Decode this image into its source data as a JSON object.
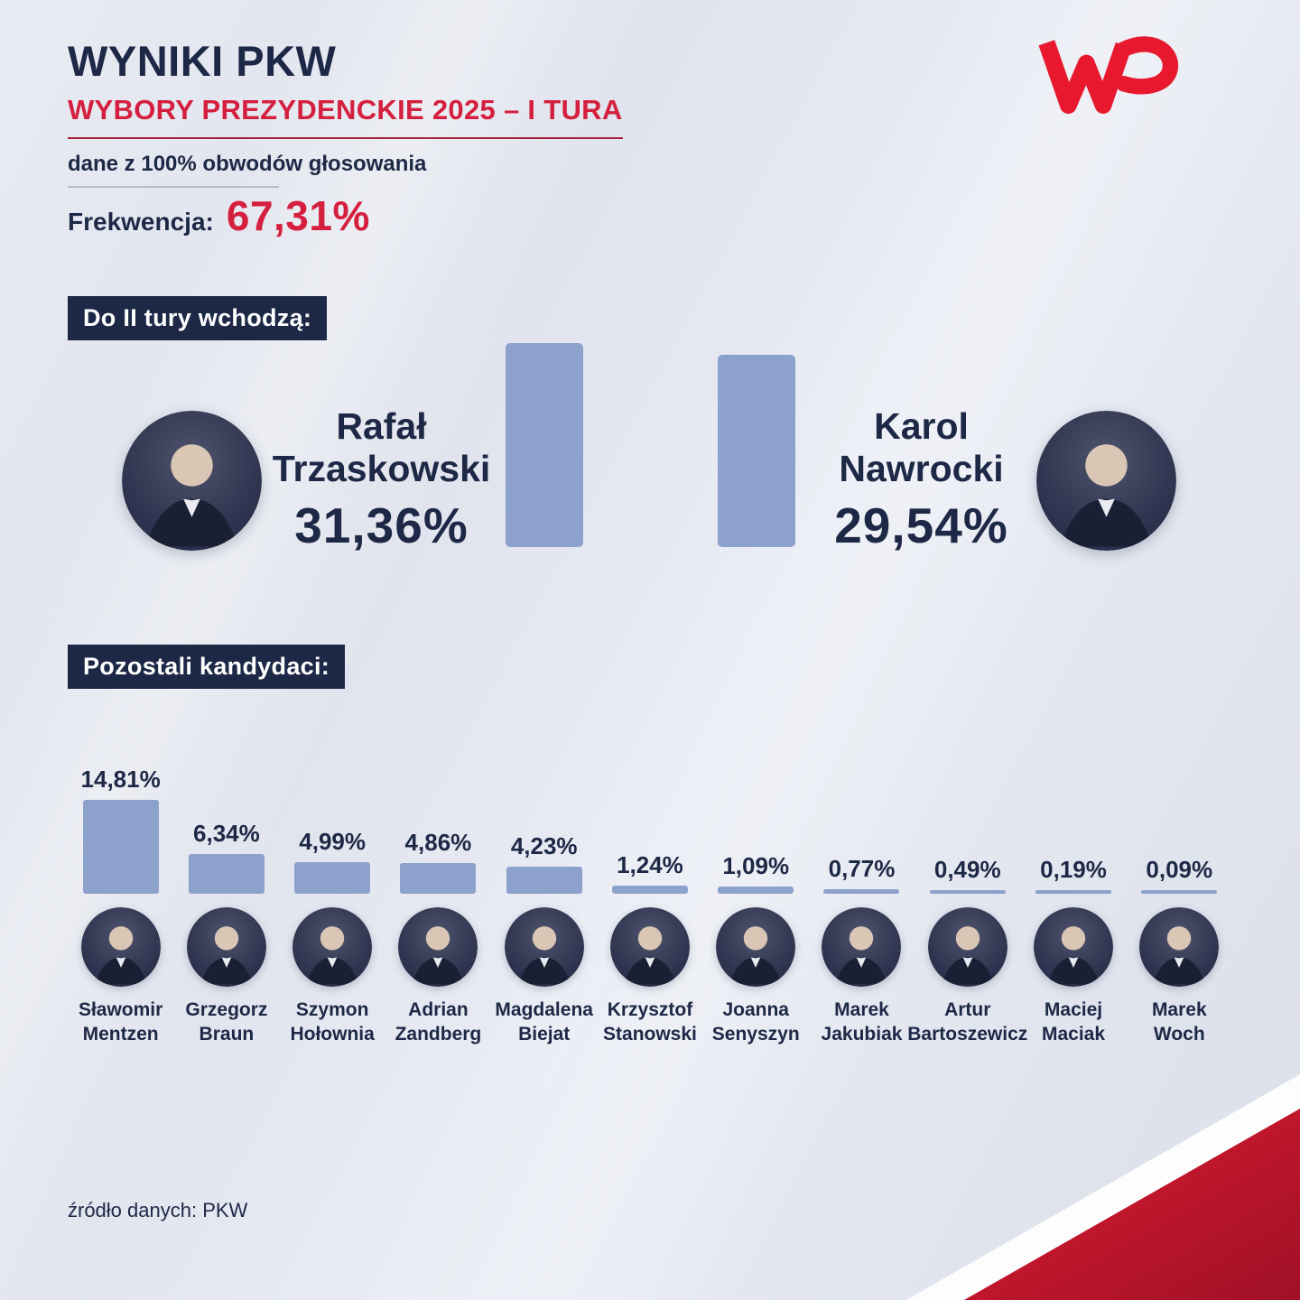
{
  "header": {
    "title": "WYNIKI PKW",
    "subtitle": "WYBORY PREZYDENCKIE 2025 – I TURA",
    "coverage": "dane z 100% obwodów głosowania",
    "turnout_label": "Frekwencja:",
    "turnout_value": "67,31%",
    "logo_name": "WP"
  },
  "finalists": {
    "section_label": "Do II tury wchodzą:",
    "candidates": [
      {
        "first": "Rafał",
        "last": "Trzaskowski",
        "percent": "31,36%",
        "value": 31.36
      },
      {
        "first": "Karol",
        "last": "Nawrocki",
        "percent": "29,54%",
        "value": 29.54
      }
    ]
  },
  "others": {
    "section_label": "Pozostali kandydaci:",
    "candidates": [
      {
        "first": "Sławomir",
        "last": "Mentzen",
        "percent": "14,81%",
        "value": 14.81
      },
      {
        "first": "Grzegorz",
        "last": "Braun",
        "percent": "6,34%",
        "value": 6.34
      },
      {
        "first": "Szymon",
        "last": "Hołownia",
        "percent": "4,99%",
        "value": 4.99
      },
      {
        "first": "Adrian",
        "last": "Zandberg",
        "percent": "4,86%",
        "value": 4.86
      },
      {
        "first": "Magdalena",
        "last": "Biejat",
        "percent": "4,23%",
        "value": 4.23
      },
      {
        "first": "Krzysztof",
        "last": "Stanowski",
        "percent": "1,24%",
        "value": 1.24
      },
      {
        "first": "Joanna",
        "last": "Senyszyn",
        "percent": "1,09%",
        "value": 1.09
      },
      {
        "first": "Marek",
        "last": "Jakubiak",
        "percent": "0,77%",
        "value": 0.77
      },
      {
        "first": "Artur",
        "last": "Bartoszewicz",
        "percent": "0,49%",
        "value": 0.49
      },
      {
        "first": "Maciej",
        "last": "Maciak",
        "percent": "0,19%",
        "value": 0.19
      },
      {
        "first": "Marek",
        "last": "Woch",
        "percent": "0,09%",
        "value": 0.09
      }
    ]
  },
  "footer": {
    "source": "źródło danych: PKW"
  },
  "colors": {
    "accent_red": "#d51f3e",
    "navy": "#1d2846",
    "bar_blue": "#8ca1cc"
  },
  "chart_data": [
    {
      "type": "bar",
      "title": "Do II tury wchodzą:",
      "categories": [
        "Rafał Trzaskowski",
        "Karol Nawrocki"
      ],
      "values": [
        31.36,
        29.54
      ],
      "unit": "%",
      "ylim": [
        0,
        32
      ],
      "grid": false,
      "legend": "none"
    },
    {
      "type": "bar",
      "title": "Pozostali kandydaci:",
      "categories": [
        "Sławomir Mentzen",
        "Grzegorz Braun",
        "Szymon Hołownia",
        "Adrian Zandberg",
        "Magdalena Biejat",
        "Krzysztof Stanowski",
        "Joanna Senyszyn",
        "Marek Jakubiak",
        "Artur Bartoszewicz",
        "Maciej Maciak",
        "Marek Woch"
      ],
      "values": [
        14.81,
        6.34,
        4.99,
        4.86,
        4.23,
        1.24,
        1.09,
        0.77,
        0.49,
        0.19,
        0.09
      ],
      "unit": "%",
      "ylim": [
        0,
        15
      ],
      "grid": false,
      "legend": "none",
      "annotations": "value labels above bars"
    }
  ]
}
